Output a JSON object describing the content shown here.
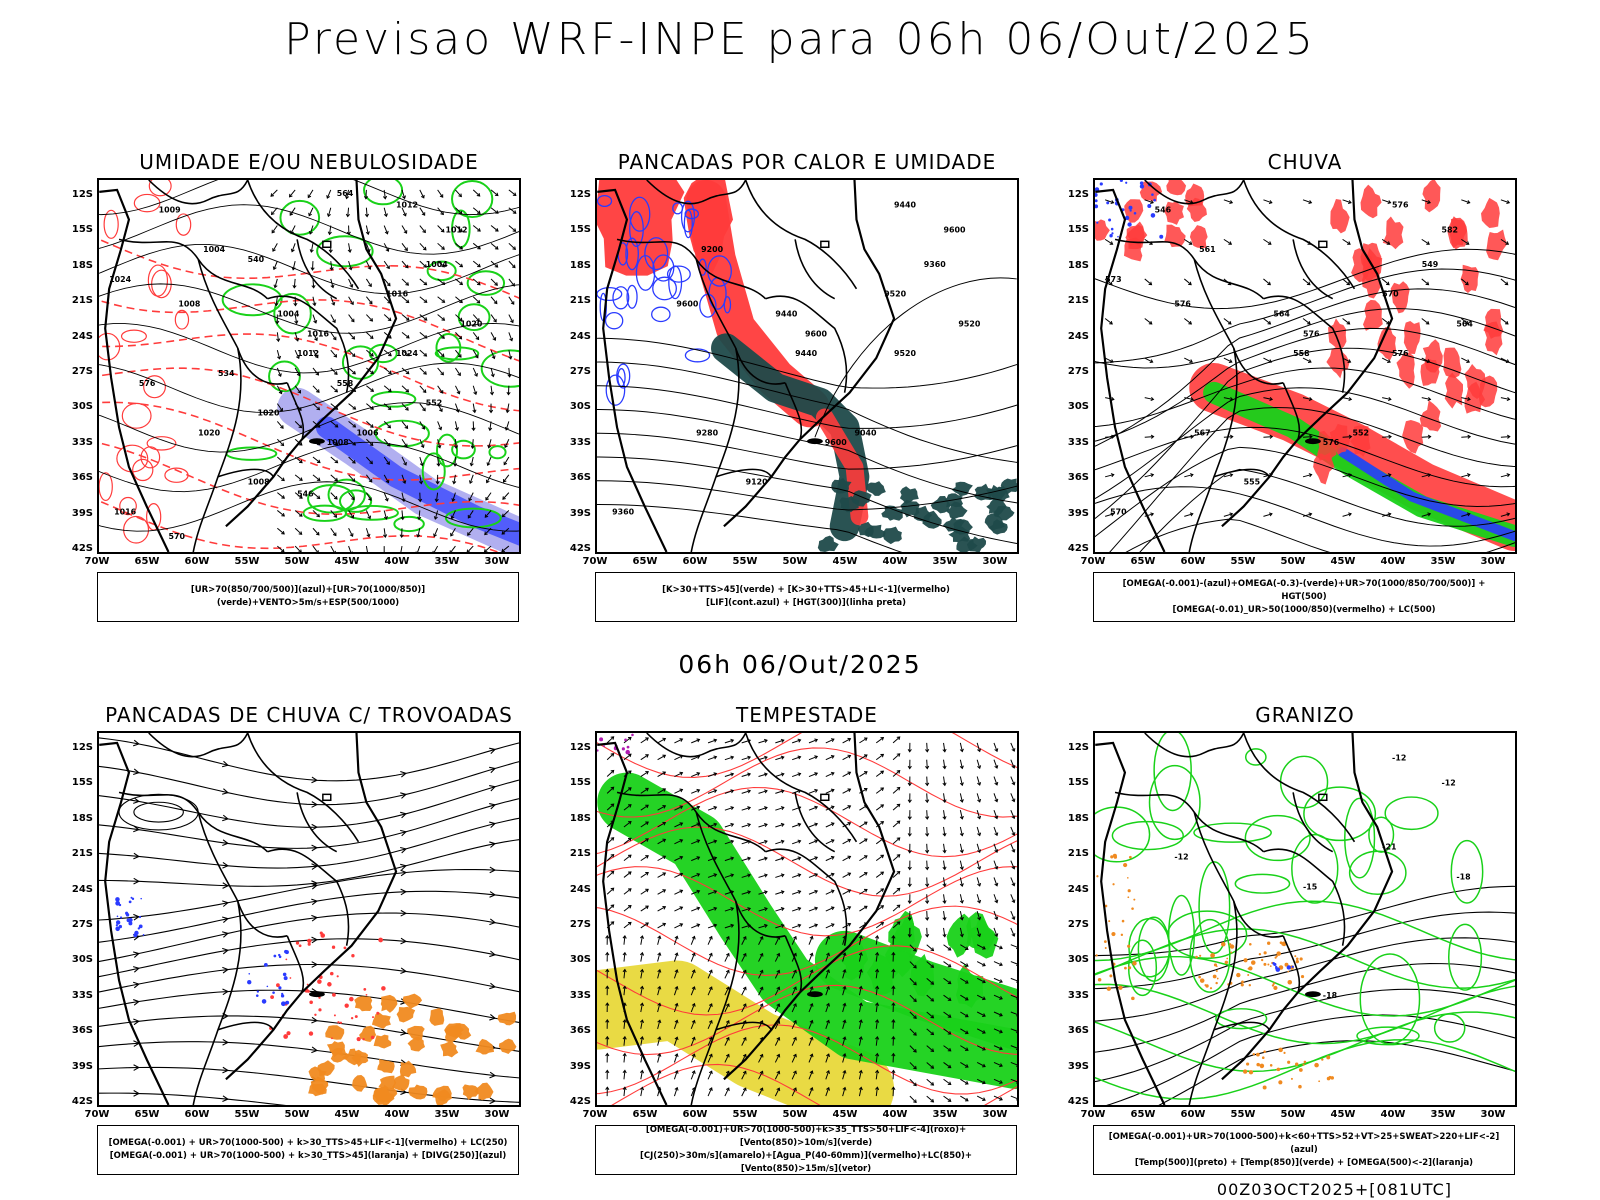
{
  "title": "Previsao WRF-INPE  para 06h 06/Out/2025",
  "middle_title": "06h 06/Out/2025",
  "footer": "00Z03OCT2025+[081UTC]",
  "lat_labels": [
    "12S",
    "15S",
    "18S",
    "21S",
    "24S",
    "27S",
    "30S",
    "33S",
    "36S",
    "39S",
    "42S"
  ],
  "lon_labels": [
    "70W",
    "65W",
    "60W",
    "55W",
    "50W",
    "45W",
    "40W",
    "35W",
    "30W"
  ],
  "colors": {
    "blue": "#2a3bff",
    "green": "#19d119",
    "red": "#ff3b3b",
    "dark_teal": "#1f4a4a",
    "yellow": "#e8d83a",
    "orange": "#f08a20",
    "lavender": "#a9a6ee"
  },
  "panels": [
    {
      "id": "umidade",
      "title": "UMIDADE E/OU NEBULOSIDADE",
      "legend": [
        "[UR>70(850/700/500)](azul)+[UR>70(1000/850)](verde)+VENTO>5m/s+ESP(500/1000)"
      ],
      "contour_labels": [
        "1012",
        "1016",
        "1008",
        "1016",
        "1008",
        "1012",
        "1020",
        "1024",
        "1016",
        "1020",
        "1004",
        "1004",
        "1012",
        "1008",
        "1006",
        "1004",
        "1009",
        "1024",
        "1020",
        "570",
        "576",
        "564",
        "540",
        "534",
        "546",
        "552",
        "558"
      ]
    },
    {
      "id": "pancadas_calor",
      "title": "PANCADAS POR CALOR E UMIDADE",
      "legend": [
        "[K>30+TTS>45](verde) + [K>30+TTS>45+LI<-1](vermelho)",
        "[LIF](cont.azul) + [HGT(300)](linha preta)"
      ],
      "contour_labels": [
        "9600",
        "9600",
        "9600",
        "9520",
        "9600",
        "9440",
        "9520",
        "9520",
        "9360",
        "9280",
        "9440",
        "9200",
        "9440",
        "9120",
        "9040",
        "9360"
      ]
    },
    {
      "id": "chuva",
      "title": "CHUVA",
      "legend": [
        "[OMEGA(-0.001)-(azul)+OMEGA(-0.3)-(verde)+UR>70(1000/850/700/500)] + HGT(500)",
        "[OMEGA(-0.01)_UR>50(1000/850)(vermelho) + LC(500)"
      ],
      "contour_labels": [
        "582",
        "576",
        "576",
        "570",
        "576",
        "576",
        "564",
        "576",
        "570",
        "567",
        "564",
        "561",
        "558",
        "555",
        "552",
        "549",
        "546",
        "573"
      ]
    },
    {
      "id": "pancadas_trovoadas",
      "title": "PANCADAS DE CHUVA C/ TROVOADAS",
      "legend": [
        "[OMEGA(-0.001) + UR>70(1000-500) + k>30_TTS>45+LIF<-1](vermelho) + LC(250)",
        "[OMEGA(-0.001) + UR>70(1000-500) + k>30_TTS>45](laranja) + [DIVG(250)](azul)"
      ],
      "contour_labels": []
    },
    {
      "id": "tempestade",
      "title": "TEMPESTADE",
      "legend": [
        "[OMEGA(-0.001)+UR>70(1000-500)+k>35_TTS>50+LIF<-4](roxo)+[Vento(850)>10m/s](verde)",
        "[CJ(250)>30m/s](amarelo)+[Agua_P(40-60mm)](vermelho)+LC(850)+[Vento(850)>15m/s](vetor)"
      ],
      "contour_labels": []
    },
    {
      "id": "granizo",
      "title": "GRANIZO",
      "legend": [
        "[OMEGA(-0.001)+UR>70(1000-500)+k<60+TTS>52+VT>25+SWEAT>220+LIF<-2](azul)",
        "[Temp(500)](preto) + [Temp(850)](verde) + [OMEGA(500)<-2](laranja)"
      ],
      "contour_labels": [
        "-12",
        "-15",
        "-18",
        "-21",
        "-12",
        "-12",
        "-18"
      ]
    }
  ]
}
